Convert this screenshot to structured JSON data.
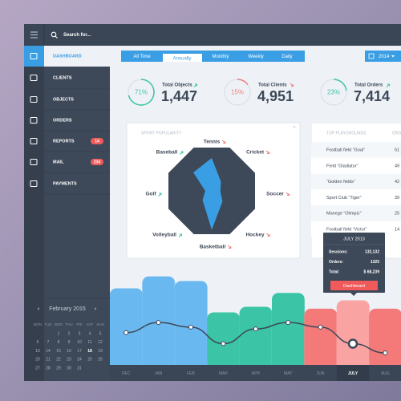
{
  "search_placeholder": "Search for...",
  "nav": [
    {
      "label": "DASHBOARD"
    },
    {
      "label": "CLIENTS"
    },
    {
      "label": "OBJECTS"
    },
    {
      "label": "ORDERS"
    },
    {
      "label": "REPORTS",
      "badge": "14"
    },
    {
      "label": "MAIL",
      "badge": "234"
    },
    {
      "label": "PAYMENTS"
    }
  ],
  "calendar": {
    "month": "February 2015",
    "weekdays": [
      "MON",
      "TUE",
      "WED",
      "THU",
      "FRI",
      "SAT",
      "SUN"
    ],
    "weeks": [
      [
        null,
        null,
        "1",
        "2",
        "3",
        "4",
        "5"
      ],
      [
        "6",
        "7",
        "8",
        "9",
        "10",
        "11",
        "12"
      ],
      [
        "13",
        "14",
        "15",
        "16",
        "17",
        "18",
        "19"
      ],
      [
        "20",
        "21",
        "22",
        "23",
        "24",
        "25",
        "26"
      ],
      [
        "27",
        "28",
        "29",
        "30",
        "31",
        null,
        null
      ]
    ],
    "selected": "18"
  },
  "tabs": [
    "All Time",
    "Annually",
    "Monthly",
    "Weekly",
    "Daily"
  ],
  "active_tab": 1,
  "year": "2014",
  "kpis": [
    {
      "percent": 71,
      "percent_label": "71%",
      "title": "Total Objects",
      "value": "1,447",
      "trend": "up",
      "color": "#3cc4a6"
    },
    {
      "percent": 15,
      "percent_label": "15%",
      "title": "Total Clients",
      "value": "4,951",
      "trend": "down",
      "color": "#f47a7a"
    },
    {
      "percent": 23,
      "percent_label": "23%",
      "title": "Total Orders",
      "value": "7,414",
      "trend": "up",
      "color": "#3cc4a6"
    }
  ],
  "table": {
    "title": "TOP PLAYGROUNDS",
    "header": "ORDERS",
    "rows": [
      [
        "Football field “Goal”",
        "51"
      ],
      [
        "Field “Gladiator”",
        "49"
      ],
      [
        "“Golden fields”",
        "42"
      ],
      [
        "Sport Club “Tiger”",
        "39"
      ],
      [
        "Manege “Olimpic”",
        "25"
      ],
      [
        "Football field “Victor”",
        "14"
      ]
    ]
  },
  "tooltip": {
    "title": "JULY 2013",
    "rows": [
      [
        "Sessions:",
        "132,132"
      ],
      [
        "Orders:",
        "1325"
      ],
      [
        "Total:",
        "$ 68,239"
      ]
    ],
    "button": "Dashboard"
  },
  "chart_data": [
    {
      "type": "radar",
      "title": "SPORT POPULARITY",
      "categories": [
        "Tennis",
        "Cricket",
        "Soccer",
        "Hockey",
        "Basketball",
        "Volleyball",
        "Golf",
        "Baseball"
      ],
      "values": [
        76,
        30,
        20,
        35,
        90,
        30,
        15,
        60
      ],
      "trends": [
        "down",
        "down",
        "down",
        "down",
        "down",
        "up",
        "up",
        "up"
      ],
      "rlim": [
        0,
        100
      ],
      "color": "#3a9ee4",
      "grid_color": "#3d4858"
    },
    {
      "type": "area_line",
      "categories": [
        "DEC",
        "JAN",
        "FEB",
        "MAR",
        "APR",
        "MAY",
        "JUN",
        "JULY",
        "AUG"
      ],
      "highlight": 7,
      "series": [
        {
          "values": [
            83,
            96,
            91,
            57,
            63,
            78,
            61,
            70,
            61
          ],
          "colors": [
            "#6ab8f0",
            "#6ab8f0",
            "#6ab8f0",
            "#3cc4a6",
            "#3cc4a6",
            "#3cc4a6",
            "#f47a7a",
            "#f9a3a3",
            "#f47a7a"
          ]
        },
        {
          "values": [
            35,
            46,
            41,
            23,
            39,
            46,
            41,
            23,
            13
          ],
          "color": "#3d4858"
        }
      ],
      "ylim": [
        0,
        100
      ]
    }
  ]
}
